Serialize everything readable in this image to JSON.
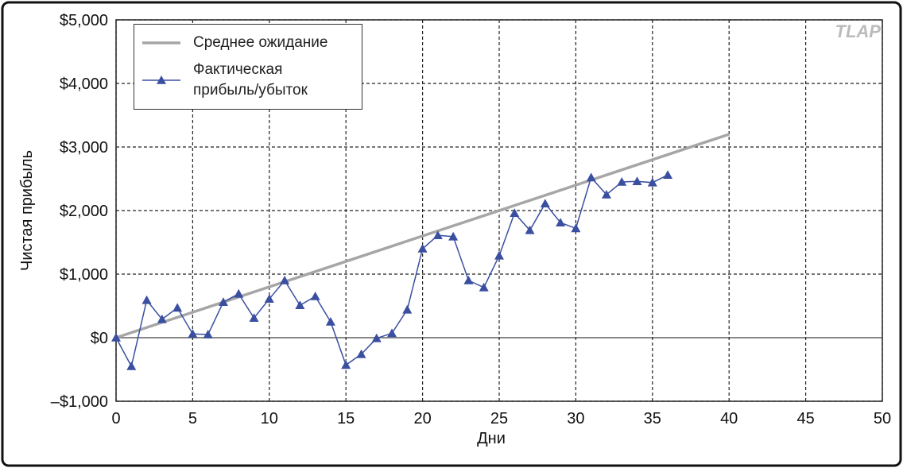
{
  "chart_data": {
    "type": "line",
    "watermark": "TLAP",
    "x_label": "Дни",
    "y_label": "Чистая прибыль",
    "xlim": [
      0,
      50
    ],
    "xticks": [
      0,
      5,
      10,
      15,
      20,
      25,
      30,
      35,
      40,
      45,
      50
    ],
    "ylim": [
      -1000,
      5000
    ],
    "yticks": [
      {
        "value": -1000,
        "label": "–$1,000"
      },
      {
        "value": 0,
        "label": "$0"
      },
      {
        "value": 1000,
        "label": "$1,000"
      },
      {
        "value": 2000,
        "label": "$2,000"
      },
      {
        "value": 3000,
        "label": "$3,000"
      },
      {
        "value": 4000,
        "label": "$4,000"
      },
      {
        "value": 5000,
        "label": "$5,000"
      }
    ],
    "grid": true,
    "series": [
      {
        "name": "Среднее ожидание",
        "color": "#a6a6a6",
        "x": [
          0,
          40
        ],
        "values": [
          0,
          3200
        ]
      },
      {
        "name": "Фактическая прибыль/убыток",
        "color": "#3a4fa0",
        "marker": "triangle",
        "x": [
          0,
          1,
          2,
          3,
          4,
          5,
          6,
          7,
          8,
          9,
          10,
          11,
          12,
          13,
          14,
          15,
          16,
          17,
          18,
          19,
          20,
          21,
          22,
          23,
          24,
          25,
          26,
          27,
          28,
          29,
          30,
          31,
          32,
          33,
          34,
          35,
          36
        ],
        "values": [
          0,
          -450,
          590,
          290,
          470,
          60,
          50,
          560,
          690,
          310,
          610,
          900,
          510,
          650,
          250,
          -430,
          -260,
          -10,
          70,
          440,
          1400,
          1610,
          1590,
          900,
          790,
          1290,
          1960,
          1690,
          2110,
          1810,
          1720,
          2520,
          2250,
          2450,
          2460,
          2440,
          2560
        ]
      }
    ]
  }
}
